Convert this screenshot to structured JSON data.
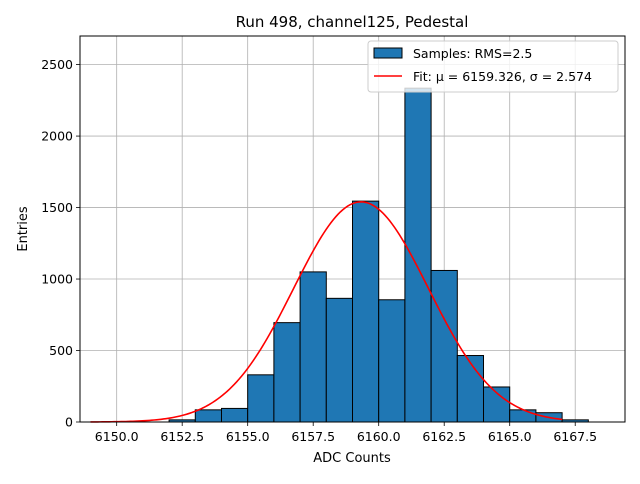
{
  "chart_data": {
    "type": "bar",
    "title": "Run 498, channel125, Pedestal",
    "xlabel": "ADC Counts",
    "ylabel": "Entries",
    "xlim": [
      6148.6,
      6169.4
    ],
    "ylim": [
      0,
      2700
    ],
    "xticks": [
      6150.0,
      6152.5,
      6155.0,
      6157.5,
      6160.0,
      6162.5,
      6165.0,
      6167.5
    ],
    "xtick_labels": [
      "6150.0",
      "6152.5",
      "6155.0",
      "6157.5",
      "6160.0",
      "6162.5",
      "6165.0",
      "6167.5"
    ],
    "yticks": [
      0,
      500,
      1000,
      1500,
      2000,
      2500
    ],
    "ytick_labels": [
      "0",
      "500",
      "1000",
      "1500",
      "2000",
      "2500"
    ],
    "grid": true,
    "legend_position": "top-right",
    "histogram": {
      "name": "Samples: RMS=2.5",
      "bin_edges": [
        6149,
        6150,
        6151,
        6152,
        6153,
        6154,
        6155,
        6156,
        6157,
        6158,
        6159,
        6160,
        6161,
        6162,
        6163,
        6164,
        6165,
        6166,
        6167,
        6168,
        6169
      ],
      "counts": [
        0,
        0,
        0,
        15,
        85,
        95,
        330,
        695,
        1050,
        865,
        1545,
        855,
        2335,
        1060,
        465,
        245,
        85,
        65,
        15,
        0
      ],
      "color": "#1f77b4",
      "edgecolor": "#000000"
    },
    "fit": {
      "name": "Fit: μ = 6159.326, σ = 2.574",
      "type": "gaussian",
      "mu": 6159.326,
      "sigma": 2.574,
      "amplitude": 1540,
      "x_range": [
        6149,
        6167
      ],
      "color": "#ff0000"
    }
  }
}
